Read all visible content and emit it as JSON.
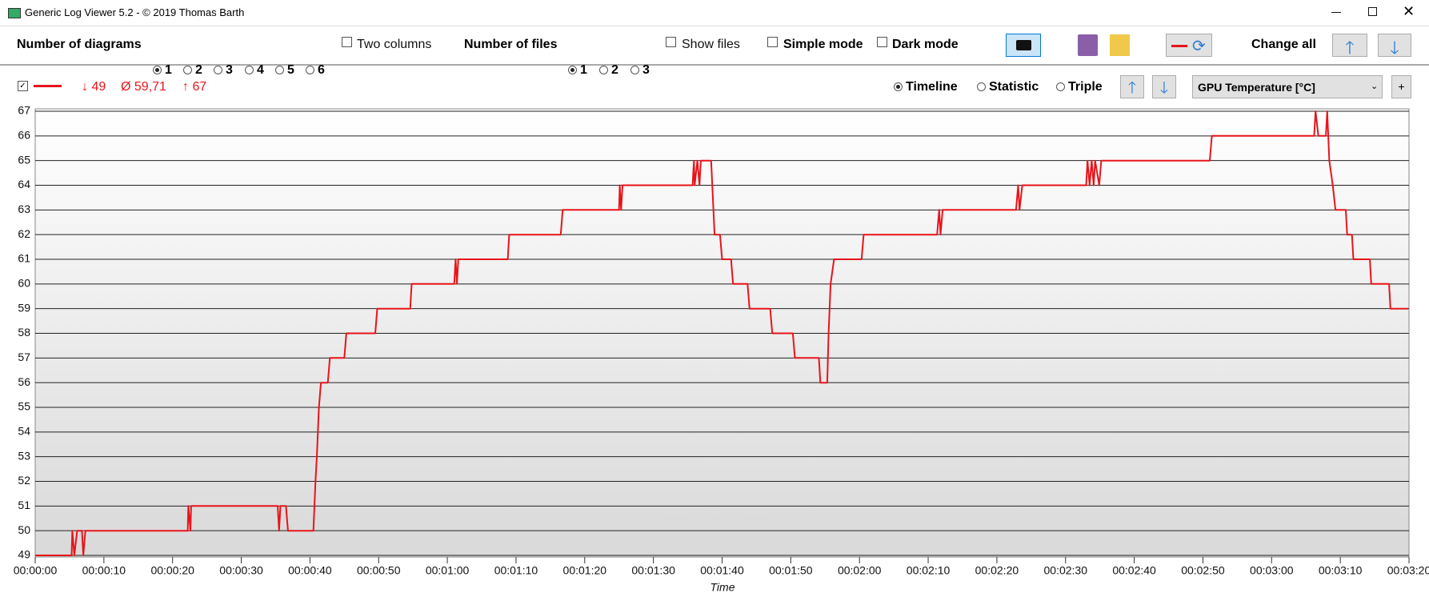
{
  "window": {
    "title": "Generic Log Viewer 5.2 - © 2019 Thomas Barth"
  },
  "toolbar": {
    "diagrams_label": "Number of diagrams",
    "diagram_options": [
      "1",
      "2",
      "3",
      "4",
      "5",
      "6"
    ],
    "two_columns": "Two columns",
    "files_label": "Number of files",
    "file_options": [
      "1",
      "2",
      "3"
    ],
    "show_files": "Show files",
    "simple_mode": "Simple mode",
    "dark_mode": "Dark mode",
    "change_all": "Change all"
  },
  "series_bar": {
    "min": "↓ 49",
    "mean": "Ø 59,71",
    "max": "↑ 67",
    "modes": [
      "Timeline",
      "Statistic",
      "Triple"
    ],
    "channel": "GPU Temperature [°C]",
    "add": "+"
  },
  "chart_data": {
    "type": "line",
    "color": "#e8141a",
    "x_label": "Time",
    "x": [
      0,
      5.3,
      5.4,
      5.7,
      6.1,
      6.8,
      7.0,
      7.3,
      22.2,
      22.3,
      22.6,
      22.7,
      35.3,
      35.5,
      35.7,
      36.5,
      36.8,
      40.5,
      40.8,
      41.0,
      41.3,
      41.6,
      42.6,
      42.9,
      45.0,
      45.3,
      49.5,
      49.8,
      54.6,
      54.8,
      61.0,
      61.2,
      61.4,
      61.6,
      68.8,
      69.0,
      76.5,
      76.8,
      85.0,
      85.1,
      85.3,
      85.5,
      95.7,
      95.9,
      96.0,
      96.4,
      96.7,
      96.9,
      98.4,
      98.9,
      99.7,
      100.0,
      101.3,
      101.6,
      103.7,
      104.0,
      107.0,
      107.3,
      110.3,
      110.6,
      114.1,
      114.3,
      115.3,
      115.5,
      115.8,
      116.3,
      120.3,
      120.6,
      131.3,
      131.6,
      131.8,
      132.1,
      142.8,
      143.1,
      143.3,
      143.7,
      153.0,
      153.2,
      153.5,
      153.8,
      154.1,
      154.3,
      154.9,
      155.2,
      171.0,
      171.3,
      186.2,
      186.4,
      186.8,
      187.9,
      188.1,
      188.4,
      188.9,
      189.3,
      190.8,
      191.0,
      191.7,
      191.9,
      194.3,
      194.5,
      197.1,
      197.3,
      199.9
    ],
    "values": [
      49,
      49,
      50,
      49,
      50,
      50,
      49,
      50,
      50,
      51,
      50,
      51,
      51,
      50,
      51,
      51,
      50,
      50,
      52,
      53,
      55,
      56,
      56,
      57,
      57,
      58,
      58,
      59,
      59,
      60,
      60,
      61,
      60,
      61,
      61,
      62,
      62,
      63,
      63,
      64,
      63,
      64,
      64,
      65,
      64,
      65,
      64,
      65,
      65,
      62,
      62,
      61,
      61,
      60,
      60,
      59,
      59,
      58,
      58,
      57,
      57,
      56,
      56,
      58,
      60,
      61,
      61,
      62,
      62,
      63,
      62,
      63,
      63,
      64,
      63,
      64,
      64,
      65,
      64,
      65,
      64,
      65,
      64,
      65,
      65,
      66,
      66,
      67,
      66,
      66,
      67,
      65,
      64,
      63,
      63,
      62,
      62,
      61,
      61,
      60,
      60,
      59,
      59
    ],
    "xlim": [
      0,
      200
    ],
    "ylim": [
      49,
      67
    ],
    "yticks": [
      49,
      50,
      51,
      52,
      53,
      54,
      55,
      56,
      57,
      58,
      59,
      60,
      61,
      62,
      63,
      64,
      65,
      66,
      67
    ],
    "xticks": [
      {
        "value": 0,
        "label": "00:00:00"
      },
      {
        "value": 10,
        "label": "00:00:10"
      },
      {
        "value": 20,
        "label": "00:00:20"
      },
      {
        "value": 30,
        "label": "00:00:30"
      },
      {
        "value": 40,
        "label": "00:00:40"
      },
      {
        "value": 50,
        "label": "00:00:50"
      },
      {
        "value": 60,
        "label": "00:01:00"
      },
      {
        "value": 70,
        "label": "00:01:10"
      },
      {
        "value": 80,
        "label": "00:01:20"
      },
      {
        "value": 90,
        "label": "00:01:30"
      },
      {
        "value": 100,
        "label": "00:01:40"
      },
      {
        "value": 110,
        "label": "00:01:50"
      },
      {
        "value": 120,
        "label": "00:02:00"
      },
      {
        "value": 130,
        "label": "00:02:10"
      },
      {
        "value": 140,
        "label": "00:02:20"
      },
      {
        "value": 150,
        "label": "00:02:30"
      },
      {
        "value": 160,
        "label": "00:02:40"
      },
      {
        "value": 170,
        "label": "00:02:50"
      },
      {
        "value": 180,
        "label": "00:03:00"
      },
      {
        "value": 190,
        "label": "00:03:10"
      },
      {
        "value": 200,
        "label": "00:03:20"
      }
    ],
    "grid": true
  }
}
